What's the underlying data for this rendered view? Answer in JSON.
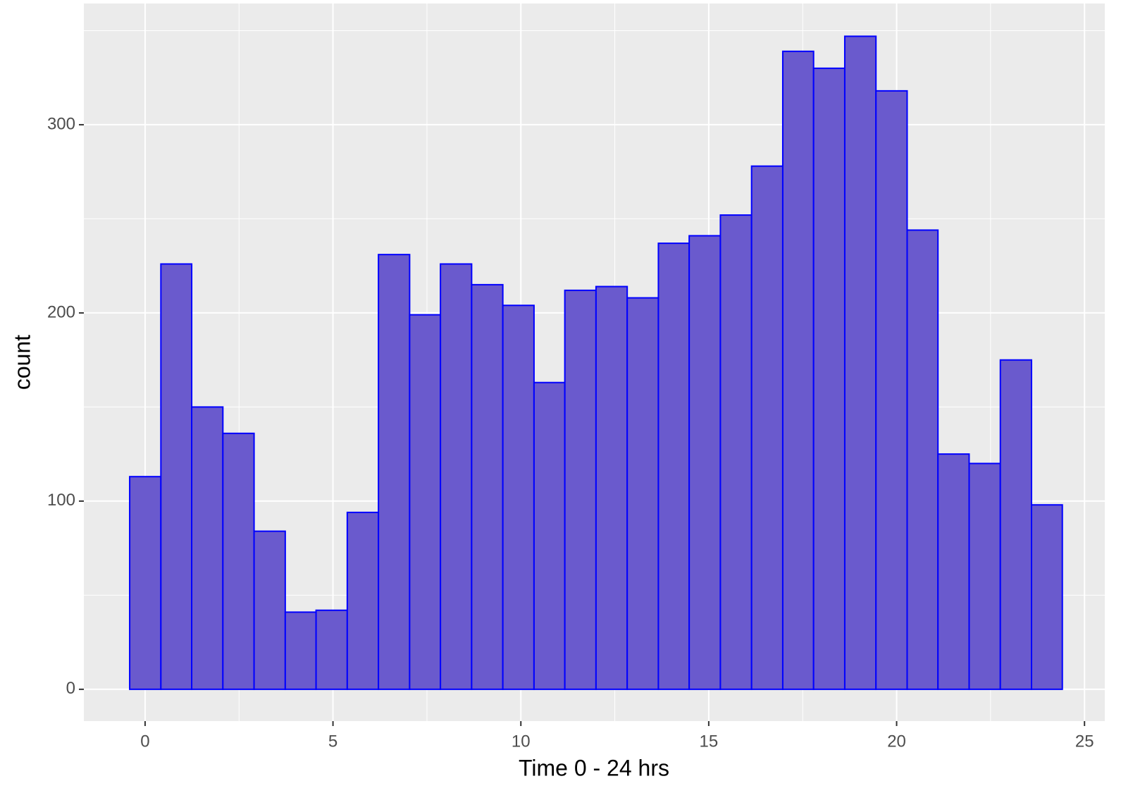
{
  "chart_data": {
    "type": "histogram",
    "x_label": "Time 0 - 24 hrs",
    "y_label": "count",
    "bins": [
      -0.41,
      0.42,
      1.24,
      2.07,
      2.9,
      3.73,
      4.55,
      5.38,
      6.21,
      7.04,
      7.86,
      8.69,
      9.52,
      10.35,
      11.17,
      12.0,
      12.83,
      13.66,
      14.48,
      15.31,
      16.14,
      16.97,
      17.79,
      18.62,
      19.45,
      20.28,
      21.1,
      21.93,
      22.76,
      23.59,
      24.41
    ],
    "values": [
      113,
      226,
      150,
      136,
      84,
      41,
      42,
      94,
      231,
      199,
      226,
      215,
      204,
      163,
      212,
      214,
      208,
      237,
      241,
      252,
      278,
      339,
      330,
      347,
      318,
      244,
      125,
      120,
      175,
      98
    ],
    "color": "#6a5acd",
    "edge_color": "#0000ff",
    "xlim": [
      -1.63,
      25.54
    ],
    "xticks": [
      0,
      5,
      10,
      15,
      20,
      25
    ],
    "ylim": [
      -16.9,
      364.4
    ],
    "yticks": [
      0,
      100,
      200,
      300
    ],
    "grid": true
  }
}
